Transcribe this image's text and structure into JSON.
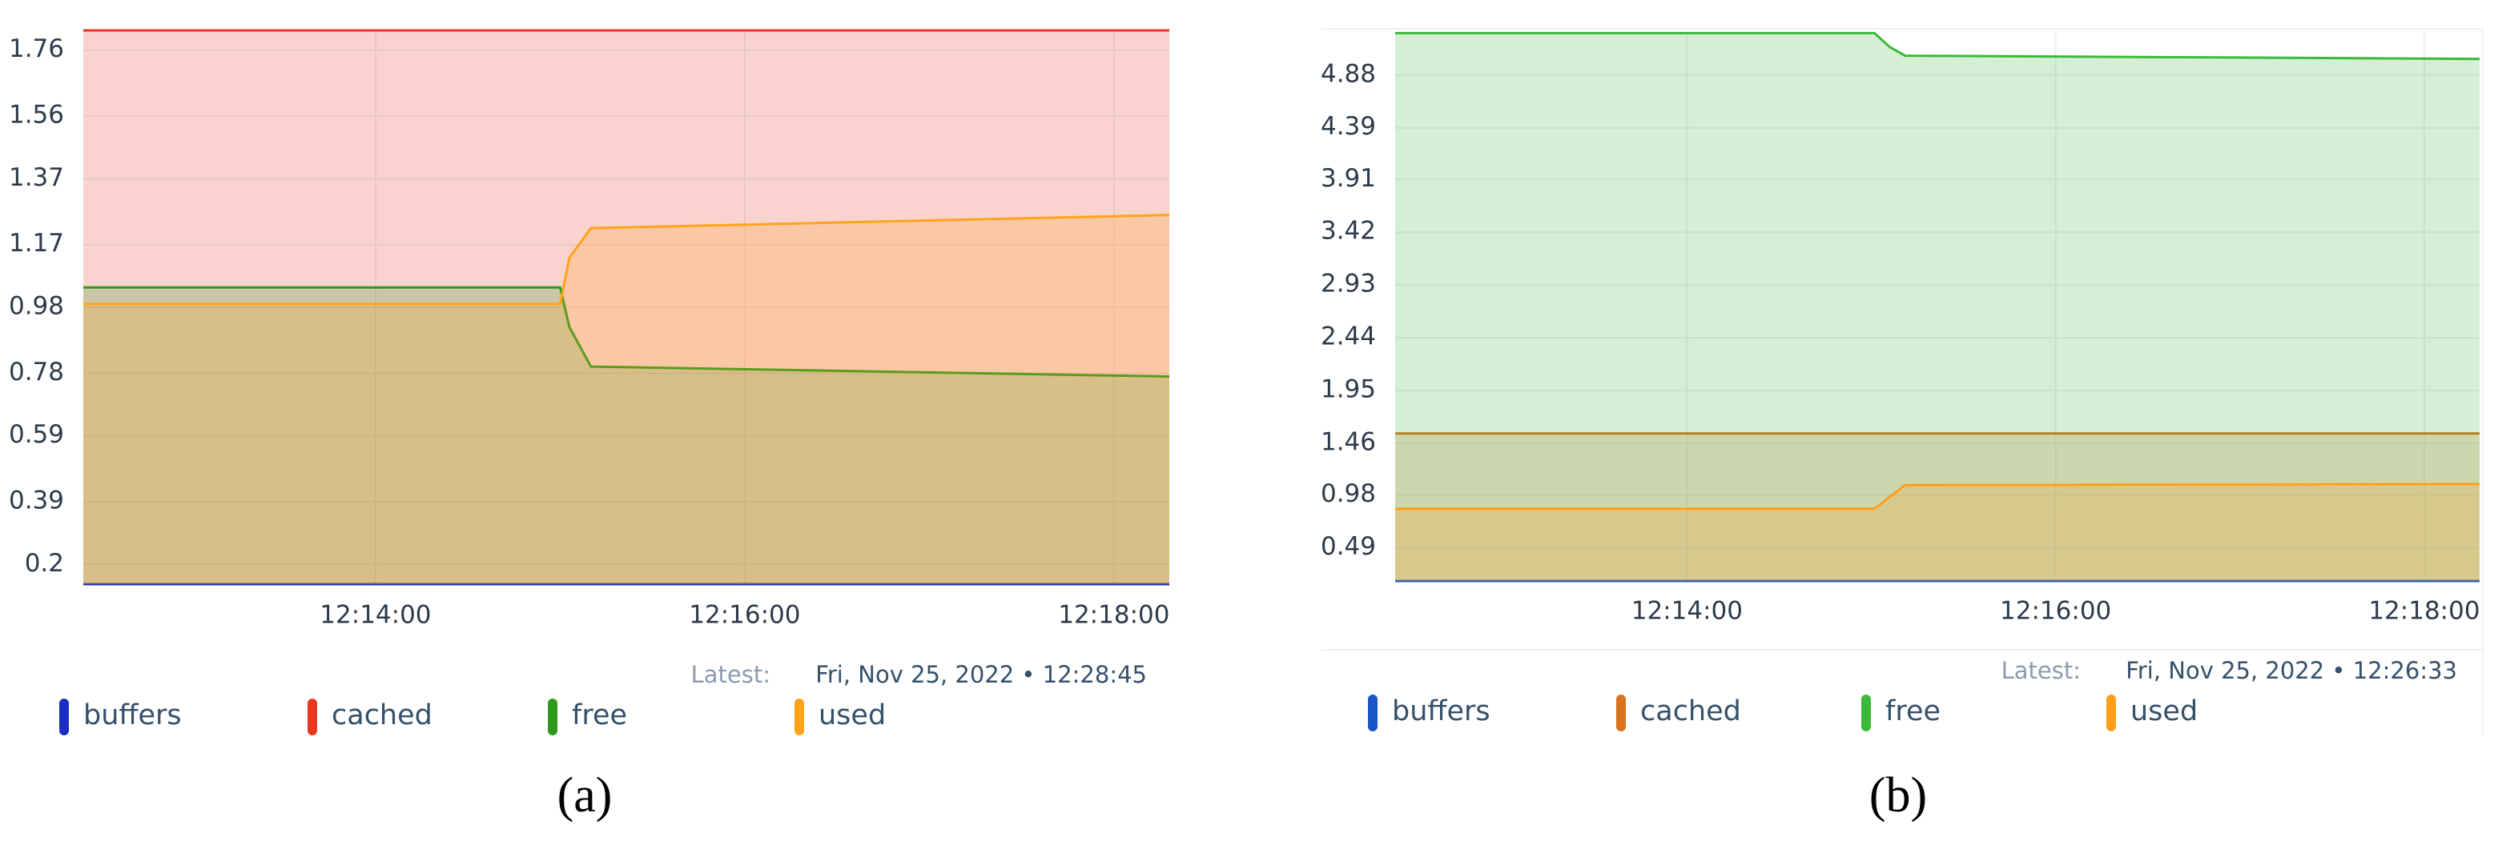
{
  "chart_data": [
    {
      "type": "area",
      "caption": "(a)",
      "latest_label": "Latest:",
      "latest": "Fri, Nov 25, 2022 • 12:28:45",
      "x": [
        "12:12:25",
        "12:15:00",
        "12:15:03",
        "12:15:10",
        "12:18:18"
      ],
      "xlim": [
        "12:12:25",
        "12:18:18"
      ],
      "xticks": [
        "12:14:00",
        "12:16:00",
        "12:18:00"
      ],
      "ylim": [
        0.14,
        1.82
      ],
      "yticks": [
        0.2,
        0.39,
        0.59,
        0.78,
        0.98,
        1.17,
        1.37,
        1.56,
        1.76
      ],
      "grid": true,
      "series": [
        {
          "name": "buffers",
          "color": "#1a2fc2",
          "values": [
            0.14,
            0.14,
            0.14,
            0.14,
            0.14
          ]
        },
        {
          "name": "cached",
          "color": "#e8361f",
          "values": [
            1.82,
            1.82,
            1.82,
            1.82,
            1.82
          ]
        },
        {
          "name": "free",
          "color": "#2e9a1c",
          "values": [
            1.04,
            1.04,
            0.92,
            0.8,
            0.77
          ]
        },
        {
          "name": "used",
          "color": "#ffa31a",
          "values": [
            0.99,
            0.99,
            1.13,
            1.22,
            1.26
          ]
        }
      ]
    },
    {
      "type": "area",
      "caption": "(b)",
      "latest_label": "Latest:",
      "latest": "Fri, Nov 25, 2022 • 12:26:33",
      "x": [
        "12:12:25",
        "12:15:01",
        "12:15:06",
        "12:15:11",
        "12:18:18"
      ],
      "xlim": [
        "12:12:25",
        "12:18:18"
      ],
      "xticks": [
        "12:14:00",
        "12:16:00",
        "12:18:00"
      ],
      "ylim": [
        0.18,
        5.28
      ],
      "yticks": [
        0.49,
        0.98,
        1.46,
        1.95,
        2.44,
        2.93,
        3.42,
        3.91,
        4.39,
        4.88
      ],
      "grid": true,
      "series": [
        {
          "name": "buffers",
          "color": "#1a55c8",
          "values": [
            0.18,
            0.18,
            0.18,
            0.18,
            0.18
          ]
        },
        {
          "name": "cached",
          "color": "#d8721f",
          "values": [
            1.55,
            1.55,
            1.55,
            1.55,
            1.55
          ]
        },
        {
          "name": "free",
          "color": "#3cb83a",
          "values": [
            5.27,
            5.27,
            5.14,
            5.06,
            5.03
          ]
        },
        {
          "name": "used",
          "color": "#ff9f1a",
          "values": [
            0.85,
            0.85,
            0.96,
            1.07,
            1.08
          ]
        }
      ]
    }
  ]
}
